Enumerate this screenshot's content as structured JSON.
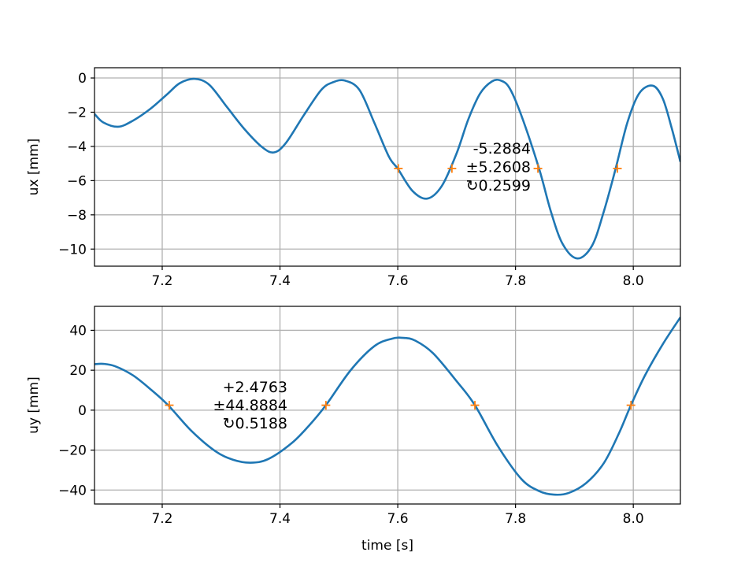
{
  "chart_data": [
    {
      "type": "line",
      "ylabel": "ux [mm]",
      "xlabel": "",
      "xlim": [
        7.085,
        8.08
      ],
      "ylim": [
        -11.0,
        0.6
      ],
      "xticks": [
        "7.2",
        "7.4",
        "7.6",
        "7.8",
        "8.0"
      ],
      "xtick_values": [
        7.2,
        7.4,
        7.6,
        7.8,
        8.0
      ],
      "yticks": [
        "0",
        "−2",
        "−4",
        "−6",
        "−8",
        "−10"
      ],
      "ytick_values": [
        0,
        -2,
        -4,
        -6,
        -8,
        -10
      ],
      "grid": true,
      "series": [
        {
          "color": "#1f77b4",
          "x": [
            7.085,
            7.1,
            7.125,
            7.15,
            7.18,
            7.21,
            7.23,
            7.255,
            7.28,
            7.31,
            7.34,
            7.37,
            7.39,
            7.41,
            7.44,
            7.47,
            7.49,
            7.51,
            7.535,
            7.56,
            7.585,
            7.6,
            7.625,
            7.65,
            7.675,
            7.7,
            7.72,
            7.74,
            7.76,
            7.775,
            7.79,
            7.81,
            7.84,
            7.86,
            7.88,
            7.905,
            7.93,
            7.95,
            7.97,
            7.99,
            8.01,
            8.033,
            8.05,
            8.065,
            8.08
          ],
          "y": [
            -2.1,
            -2.6,
            -2.85,
            -2.5,
            -1.8,
            -0.9,
            -0.3,
            -0.05,
            -0.4,
            -1.7,
            -3.0,
            -4.05,
            -4.35,
            -3.8,
            -2.2,
            -0.7,
            -0.25,
            -0.15,
            -0.7,
            -2.6,
            -4.6,
            -5.3,
            -6.6,
            -7.05,
            -6.3,
            -4.4,
            -2.4,
            -0.9,
            -0.2,
            -0.15,
            -0.6,
            -2.2,
            -5.3,
            -7.8,
            -9.7,
            -10.55,
            -9.8,
            -7.8,
            -5.3,
            -2.6,
            -0.9,
            -0.45,
            -1.2,
            -2.9,
            -4.9
          ]
        }
      ],
      "markers": {
        "color": "#ff7f0e",
        "symbol": "+",
        "x": [
          7.601,
          7.692,
          7.838,
          7.973
        ],
        "y": [
          -5.2884,
          -5.2884,
          -5.2884,
          -5.2884
        ]
      },
      "annotation": {
        "lines": [
          "-5.2884",
          "±5.2608",
          "↻0.2599"
        ]
      }
    },
    {
      "type": "line",
      "ylabel": "uy [mm]",
      "xlabel": "time [s]",
      "xlim": [
        7.085,
        8.08
      ],
      "ylim": [
        -47,
        52
      ],
      "xticks": [
        "7.2",
        "7.4",
        "7.6",
        "7.8",
        "8.0"
      ],
      "xtick_values": [
        7.2,
        7.4,
        7.6,
        7.8,
        8.0
      ],
      "yticks": [
        "40",
        "20",
        "0",
        "−20",
        "−40"
      ],
      "ytick_values": [
        40,
        20,
        0,
        -20,
        -40
      ],
      "grid": true,
      "series": [
        {
          "color": "#1f77b4",
          "x": [
            7.085,
            7.1,
            7.12,
            7.15,
            7.18,
            7.21,
            7.25,
            7.29,
            7.32,
            7.35,
            7.38,
            7.42,
            7.45,
            7.478,
            7.52,
            7.56,
            7.59,
            7.61,
            7.63,
            7.66,
            7.7,
            7.731,
            7.77,
            7.81,
            7.84,
            7.865,
            7.89,
            7.92,
            7.95,
            7.975,
            7.996,
            8.02,
            8.05,
            8.08
          ],
          "y": [
            23,
            23.2,
            22,
            17.5,
            10.5,
            2.5,
            -10.5,
            -20.5,
            -24.8,
            -26.3,
            -24.5,
            -16.5,
            -7.5,
            2.5,
            20,
            32,
            35.8,
            36.2,
            34.8,
            28.5,
            14.5,
            2.5,
            -18,
            -34.5,
            -40.5,
            -42.3,
            -41.5,
            -36.5,
            -26.5,
            -12,
            2.5,
            17.5,
            33,
            46.5
          ]
        }
      ],
      "markers": {
        "color": "#ff7f0e",
        "symbol": "+",
        "x": [
          7.212,
          7.478,
          7.731,
          7.996
        ],
        "y": [
          2.4763,
          2.4763,
          2.4763,
          2.4763
        ]
      },
      "annotation": {
        "lines": [
          "+2.4763",
          "±44.8884",
          "↻0.5188"
        ]
      }
    }
  ]
}
